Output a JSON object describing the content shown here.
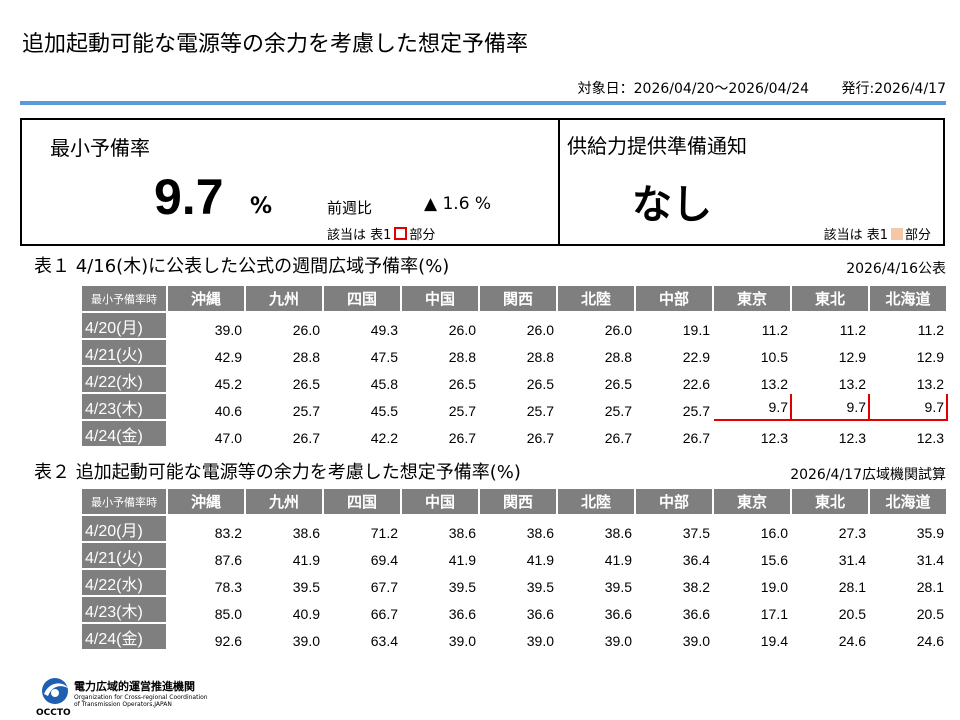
{
  "header": {
    "title": "追加起動可能な電源等の余力を考慮した想定予備率",
    "target_period": "対象日：2026/04/20～2026/04/24",
    "issued": "発行:2026/4/17"
  },
  "summary": {
    "min_label": "最小予備率",
    "min_value": "9.7",
    "min_unit": "%",
    "wow_label": "前週比",
    "wow_value": "▲ 1.6 %",
    "note_left_prefix": "該当は 表1",
    "note_left_suffix": "部分",
    "notice_label": "供給力提供準備通知",
    "notice_value": "なし",
    "note_right_prefix": "該当は 表1",
    "note_right_suffix": "部分",
    "highlight_color": "#e00000",
    "notice_color": "#f4c7a8"
  },
  "table1": {
    "title": "表１ 4/16(木)に公表した公式の週間広域予備率(%)",
    "note": "2026/4/16公表",
    "corner": "最小予備率時",
    "columns": [
      "沖縄",
      "九州",
      "四国",
      "中国",
      "関西",
      "北陸",
      "中部",
      "東京",
      "東北",
      "北海道"
    ],
    "rows": [
      {
        "date": "4/20(月)",
        "values": [
          "39.0",
          "26.0",
          "49.3",
          "26.0",
          "26.0",
          "26.0",
          "19.1",
          "11.2",
          "11.2",
          "11.2"
        ]
      },
      {
        "date": "4/21(火)",
        "values": [
          "42.9",
          "28.8",
          "47.5",
          "28.8",
          "28.8",
          "28.8",
          "22.9",
          "10.5",
          "12.9",
          "12.9"
        ]
      },
      {
        "date": "4/22(水)",
        "values": [
          "45.2",
          "26.5",
          "45.8",
          "26.5",
          "26.5",
          "26.5",
          "22.6",
          "13.2",
          "13.2",
          "13.2"
        ]
      },
      {
        "date": "4/23(木)",
        "values": [
          "40.6",
          "25.7",
          "45.5",
          "25.7",
          "25.7",
          "25.7",
          "25.7",
          "9.7",
          "9.7",
          "9.7"
        ]
      },
      {
        "date": "4/24(金)",
        "values": [
          "47.0",
          "26.7",
          "42.2",
          "26.7",
          "26.7",
          "26.7",
          "26.7",
          "12.3",
          "12.3",
          "12.3"
        ]
      }
    ]
  },
  "table2": {
    "title": "表２ 追加起動可能な電源等の余力を考慮した想定予備率(%)",
    "note": "2026/4/17広域機関試算",
    "corner": "最小予備率時",
    "columns": [
      "沖縄",
      "九州",
      "四国",
      "中国",
      "関西",
      "北陸",
      "中部",
      "東京",
      "東北",
      "北海道"
    ],
    "rows": [
      {
        "date": "4/20(月)",
        "values": [
          "83.2",
          "38.6",
          "71.2",
          "38.6",
          "38.6",
          "38.6",
          "37.5",
          "16.0",
          "27.3",
          "35.9"
        ]
      },
      {
        "date": "4/21(火)",
        "values": [
          "87.6",
          "41.9",
          "69.4",
          "41.9",
          "41.9",
          "41.9",
          "36.4",
          "15.6",
          "31.4",
          "31.4"
        ]
      },
      {
        "date": "4/22(水)",
        "values": [
          "78.3",
          "39.5",
          "67.7",
          "39.5",
          "39.5",
          "39.5",
          "38.2",
          "19.0",
          "28.1",
          "28.1"
        ]
      },
      {
        "date": "4/23(木)",
        "values": [
          "85.0",
          "40.9",
          "66.7",
          "36.6",
          "36.6",
          "36.6",
          "36.6",
          "17.1",
          "20.5",
          "20.5"
        ]
      },
      {
        "date": "4/24(金)",
        "values": [
          "92.6",
          "39.0",
          "63.4",
          "39.0",
          "39.0",
          "39.0",
          "39.0",
          "19.4",
          "24.6",
          "24.6"
        ]
      }
    ]
  },
  "footer": {
    "org_jp": "電力広域的運営推進機関",
    "org_en": "Organization for Cross-regional Coordination of Transmission Operators,JAPAN",
    "org_abbr": "OCCTO"
  }
}
